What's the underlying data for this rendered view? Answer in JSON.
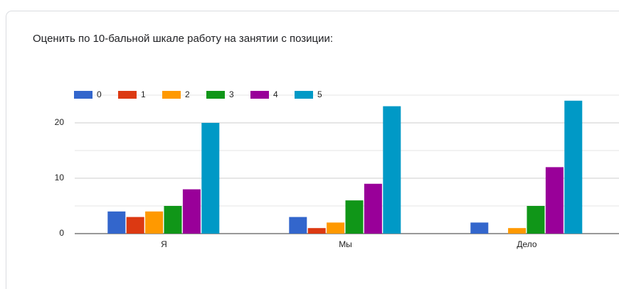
{
  "chart_data": {
    "type": "bar",
    "title": "Оценить по 10-бальной шкале работу на занятии с позиции:",
    "categories": [
      "Я",
      "Мы",
      "Дело"
    ],
    "series": [
      {
        "name": "0",
        "color": "#3366cc",
        "values": [
          4,
          3,
          2
        ]
      },
      {
        "name": "1",
        "color": "#dc3912",
        "values": [
          3,
          1,
          0
        ]
      },
      {
        "name": "2",
        "color": "#ff9900",
        "values": [
          4,
          2,
          1
        ]
      },
      {
        "name": "3",
        "color": "#109618",
        "values": [
          5,
          6,
          5
        ]
      },
      {
        "name": "4",
        "color": "#990099",
        "values": [
          8,
          9,
          12
        ]
      },
      {
        "name": "5",
        "color": "#0099c6",
        "values": [
          20,
          23,
          24
        ]
      }
    ],
    "ylim": [
      0,
      25
    ],
    "yticks": [
      0,
      10,
      20
    ],
    "minor_gridlines": [
      5,
      15,
      25
    ],
    "grid": true,
    "legend": "top"
  }
}
